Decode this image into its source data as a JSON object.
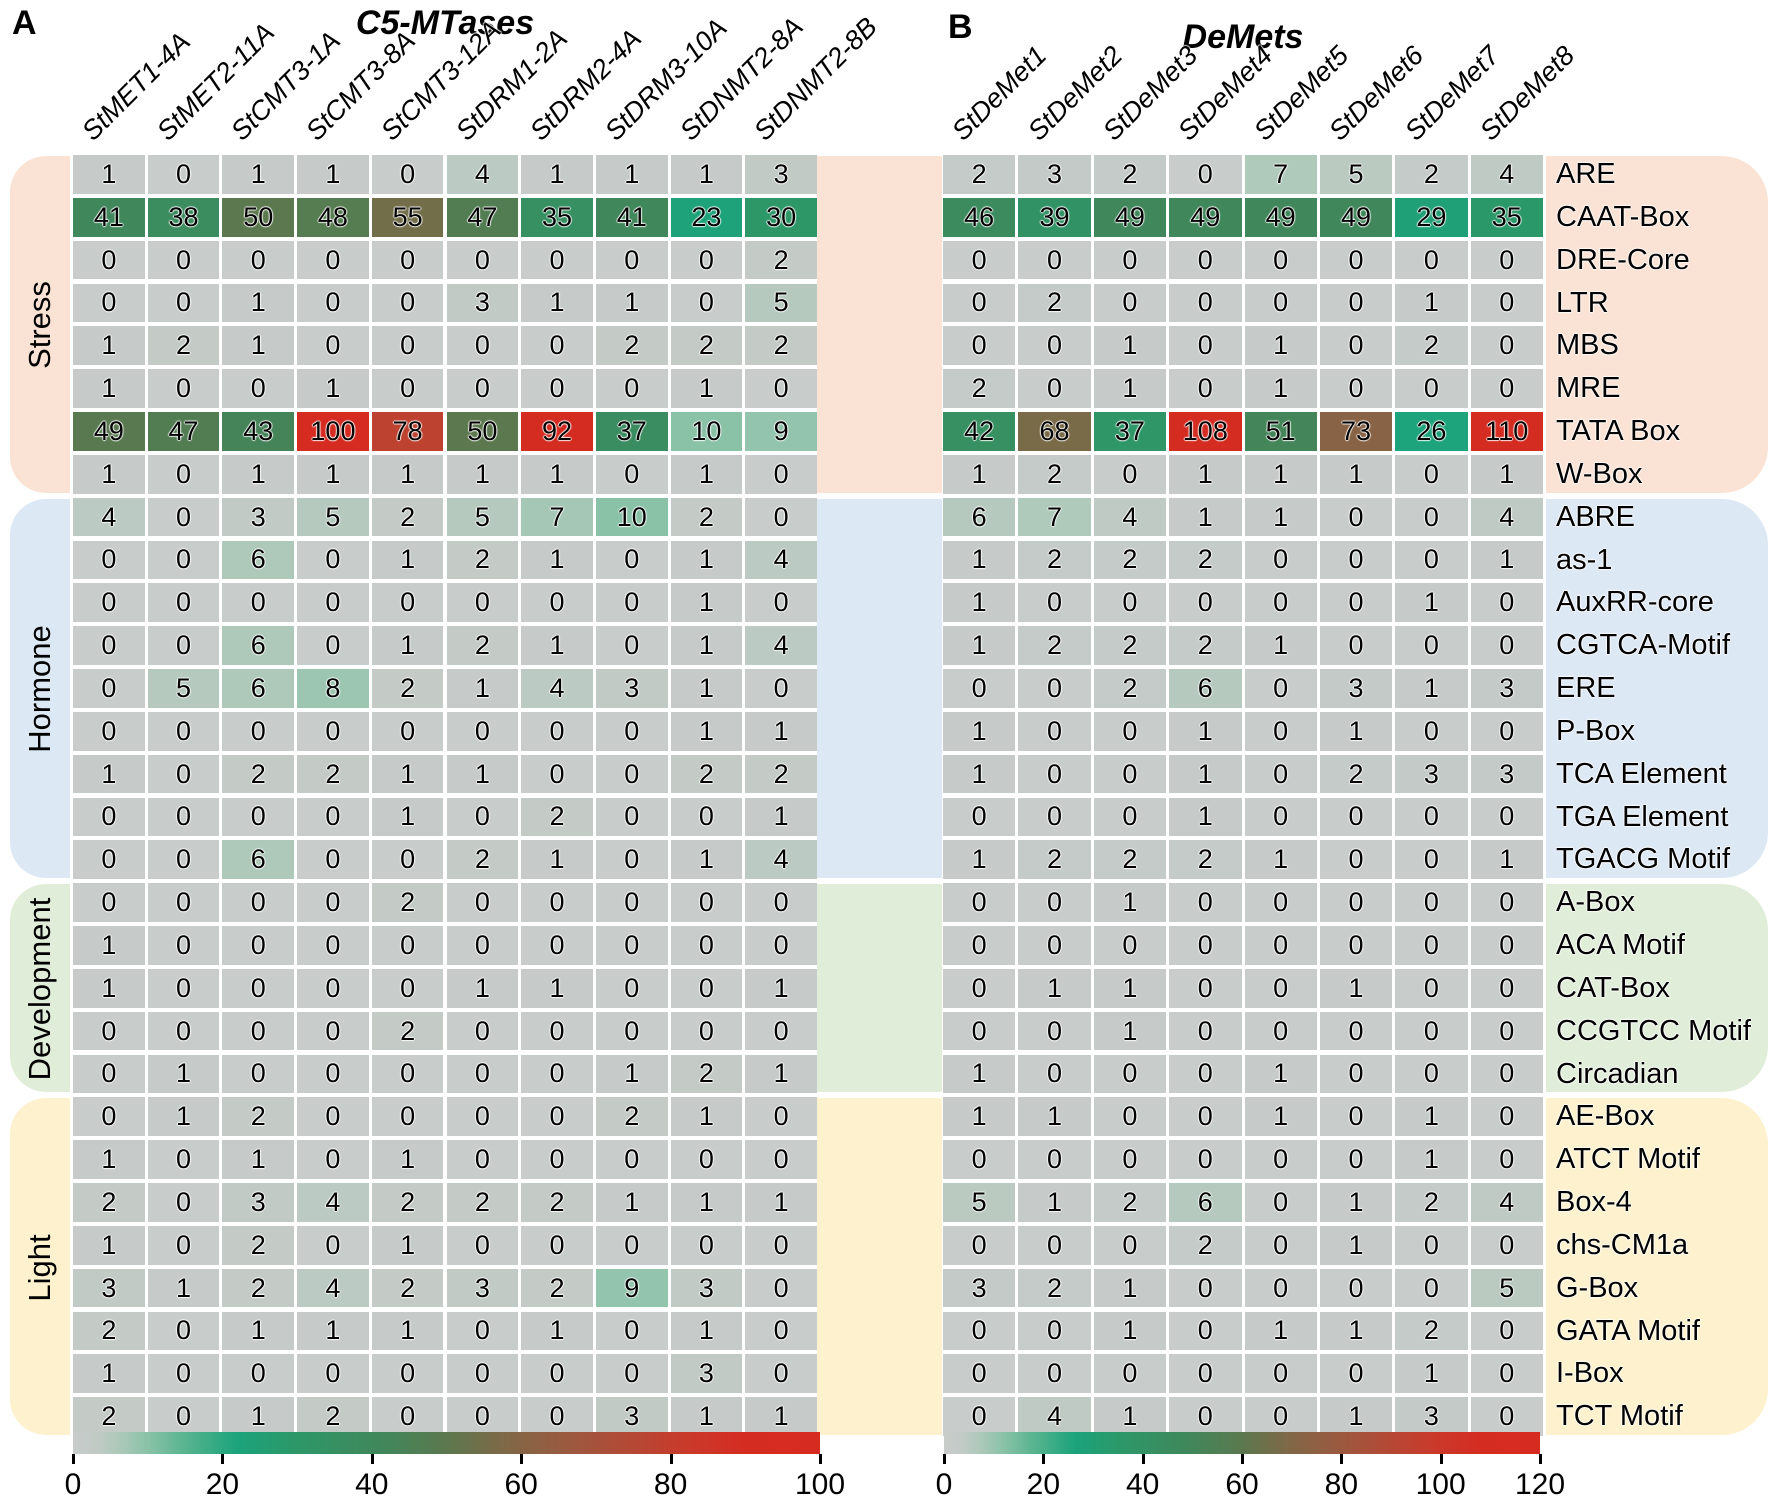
{
  "figure": {
    "panel_a_letter": "A",
    "panel_b_letter": "B"
  },
  "row_groups": [
    {
      "label": "Stress",
      "color": "#fae3d5",
      "rows": [
        "ARE",
        "CAAT-Box",
        "DRE-Core",
        "LTR",
        "MBS",
        "MRE",
        "TATA Box",
        "W-Box"
      ]
    },
    {
      "label": "Hormone",
      "color": "#dde8f5",
      "rows": [
        "ABRE",
        "as-1",
        "AuxRR-core",
        "CGTCA-Motif",
        "ERE",
        "P-Box",
        "TCA Element",
        "TGA Element",
        "TGACG Motif"
      ]
    },
    {
      "label": "Development",
      "color": "#e0eed9",
      "rows": [
        "A-Box",
        "ACA Motif",
        "CAT-Box",
        "CCGTCC Motif",
        "Circadian"
      ]
    },
    {
      "label": "Light",
      "color": "#fdf2cd",
      "rows": [
        "AE-Box",
        "ATCT Motif",
        "Box-4",
        "chs-CM1a",
        "G-Box",
        "GATA Motif",
        "I-Box",
        "TCT Motif"
      ]
    }
  ],
  "heatmap_scale": {
    "stops": [
      {
        "t": 0.0,
        "color": "#c8ccca"
      },
      {
        "t": 0.03,
        "color": "#c2cac6"
      },
      {
        "t": 0.06,
        "color": "#aec9ba"
      },
      {
        "t": 0.1,
        "color": "#8ac2a8"
      },
      {
        "t": 0.15,
        "color": "#58b48f"
      },
      {
        "t": 0.22,
        "color": "#1ba37b"
      },
      {
        "t": 0.3,
        "color": "#2d9768"
      },
      {
        "t": 0.42,
        "color": "#42865a"
      },
      {
        "t": 0.5,
        "color": "#5c784e"
      },
      {
        "t": 0.58,
        "color": "#806847"
      },
      {
        "t": 0.66,
        "color": "#9a5a40"
      },
      {
        "t": 0.74,
        "color": "#b24a36"
      },
      {
        "t": 0.82,
        "color": "#c93a2b"
      },
      {
        "t": 0.9,
        "color": "#d52c22"
      },
      {
        "t": 1.0,
        "color": "#d62b21"
      }
    ]
  },
  "chart_data": [
    {
      "type": "heatmap",
      "panel_label": "A",
      "title": "C5-MTases",
      "columns": [
        "StMET1-4A",
        "StMET2-11A",
        "StCMT3-1A",
        "StCMT3-8A",
        "StCMT3-12A",
        "StDRM1-2A",
        "StDRM2-4A",
        "StDRM3-10A",
        "StDNMT2-8A",
        "StDNMT2-8B"
      ],
      "rows": [
        "ARE",
        "CAAT-Box",
        "DRE-Core",
        "LTR",
        "MBS",
        "MRE",
        "TATA Box",
        "W-Box",
        "ABRE",
        "as-1",
        "AuxRR-core",
        "CGTCA-Motif",
        "ERE",
        "P-Box",
        "TCA Element",
        "TGA Element",
        "TGACG Motif",
        "A-Box",
        "ACA Motif",
        "CAT-Box",
        "CCGTCC Motif",
        "Circadian",
        "AE-Box",
        "ATCT Motif",
        "Box-4",
        "chs-CM1a",
        "G-Box",
        "GATA Motif",
        "I-Box",
        "TCT Motif"
      ],
      "values": [
        [
          1,
          0,
          1,
          1,
          0,
          4,
          1,
          1,
          1,
          3
        ],
        [
          41,
          38,
          50,
          48,
          55,
          47,
          35,
          41,
          23,
          30
        ],
        [
          0,
          0,
          0,
          0,
          0,
          0,
          0,
          0,
          0,
          2
        ],
        [
          0,
          0,
          1,
          0,
          0,
          3,
          1,
          1,
          0,
          5
        ],
        [
          1,
          2,
          1,
          0,
          0,
          0,
          0,
          2,
          2,
          2
        ],
        [
          1,
          0,
          0,
          1,
          0,
          0,
          0,
          0,
          1,
          0
        ],
        [
          49,
          47,
          43,
          100,
          78,
          50,
          92,
          37,
          10,
          9
        ],
        [
          1,
          0,
          1,
          1,
          1,
          1,
          1,
          0,
          1,
          0
        ],
        [
          4,
          0,
          3,
          5,
          2,
          5,
          7,
          10,
          2,
          0
        ],
        [
          0,
          0,
          6,
          0,
          1,
          2,
          1,
          0,
          1,
          4
        ],
        [
          0,
          0,
          0,
          0,
          0,
          0,
          0,
          0,
          1,
          0
        ],
        [
          0,
          0,
          6,
          0,
          1,
          2,
          1,
          0,
          1,
          4
        ],
        [
          0,
          5,
          6,
          8,
          2,
          1,
          4,
          3,
          1,
          0
        ],
        [
          0,
          0,
          0,
          0,
          0,
          0,
          0,
          0,
          1,
          1
        ],
        [
          1,
          0,
          2,
          2,
          1,
          1,
          0,
          0,
          2,
          2
        ],
        [
          0,
          0,
          0,
          0,
          1,
          0,
          2,
          0,
          0,
          1
        ],
        [
          0,
          0,
          6,
          0,
          0,
          2,
          1,
          0,
          1,
          4
        ],
        [
          0,
          0,
          0,
          0,
          2,
          0,
          0,
          0,
          0,
          0
        ],
        [
          1,
          0,
          0,
          0,
          0,
          0,
          0,
          0,
          0,
          0
        ],
        [
          1,
          0,
          0,
          0,
          0,
          1,
          1,
          0,
          0,
          1
        ],
        [
          0,
          0,
          0,
          0,
          2,
          0,
          0,
          0,
          0,
          0
        ],
        [
          0,
          1,
          0,
          0,
          0,
          0,
          0,
          1,
          2,
          1
        ],
        [
          0,
          1,
          2,
          0,
          0,
          0,
          0,
          2,
          1,
          0
        ],
        [
          1,
          0,
          1,
          0,
          1,
          0,
          0,
          0,
          0,
          0
        ],
        [
          2,
          0,
          3,
          4,
          2,
          2,
          2,
          1,
          1,
          1
        ],
        [
          1,
          0,
          2,
          0,
          1,
          0,
          0,
          0,
          0,
          0
        ],
        [
          3,
          1,
          2,
          4,
          2,
          3,
          2,
          9,
          3,
          0
        ],
        [
          2,
          0,
          1,
          1,
          1,
          0,
          1,
          0,
          1,
          0
        ],
        [
          1,
          0,
          0,
          0,
          0,
          0,
          0,
          0,
          3,
          0
        ],
        [
          2,
          0,
          1,
          2,
          0,
          0,
          0,
          3,
          1,
          1
        ]
      ],
      "scale_max": 100,
      "colorbar_ticks": [
        0,
        20,
        40,
        60,
        80,
        100
      ],
      "legend_position": "bottom",
      "grid": false
    },
    {
      "type": "heatmap",
      "panel_label": "B",
      "title": "DeMets",
      "columns": [
        "StDeMet1",
        "StDeMet2",
        "StDeMet3",
        "StDeMet4",
        "StDeMet5",
        "StDeMet6",
        "StDeMet7",
        "StDeMet8"
      ],
      "rows": [
        "ARE",
        "CAAT-Box",
        "DRE-Core",
        "LTR",
        "MBS",
        "MRE",
        "TATA Box",
        "W-Box",
        "ABRE",
        "as-1",
        "AuxRR-core",
        "CGTCA-Motif",
        "ERE",
        "P-Box",
        "TCA Element",
        "TGA Element",
        "TGACG Motif",
        "A-Box",
        "ACA Motif",
        "CAT-Box",
        "CCGTCC Motif",
        "Circadian",
        "AE-Box",
        "ATCT Motif",
        "Box-4",
        "chs-CM1a",
        "G-Box",
        "GATA Motif",
        "I-Box",
        "TCT Motif"
      ],
      "values": [
        [
          2,
          3,
          2,
          0,
          7,
          5,
          2,
          4
        ],
        [
          46,
          39,
          49,
          49,
          49,
          49,
          29,
          35
        ],
        [
          0,
          0,
          0,
          0,
          0,
          0,
          0,
          0
        ],
        [
          0,
          2,
          0,
          0,
          0,
          0,
          1,
          0
        ],
        [
          0,
          0,
          1,
          0,
          1,
          0,
          2,
          0
        ],
        [
          2,
          0,
          1,
          0,
          1,
          0,
          0,
          0
        ],
        [
          42,
          68,
          37,
          108,
          51,
          73,
          26,
          110
        ],
        [
          1,
          2,
          0,
          1,
          1,
          1,
          0,
          1
        ],
        [
          6,
          7,
          4,
          1,
          1,
          0,
          0,
          4
        ],
        [
          1,
          2,
          2,
          2,
          0,
          0,
          0,
          1
        ],
        [
          1,
          0,
          0,
          0,
          0,
          0,
          1,
          0
        ],
        [
          1,
          2,
          2,
          2,
          1,
          0,
          0,
          0
        ],
        [
          0,
          0,
          2,
          6,
          0,
          3,
          1,
          3
        ],
        [
          1,
          0,
          0,
          1,
          0,
          1,
          0,
          0
        ],
        [
          1,
          0,
          0,
          1,
          0,
          2,
          3,
          3
        ],
        [
          0,
          0,
          0,
          1,
          0,
          0,
          0,
          0
        ],
        [
          1,
          2,
          2,
          2,
          1,
          0,
          0,
          1
        ],
        [
          0,
          0,
          1,
          0,
          0,
          0,
          0,
          0
        ],
        [
          0,
          0,
          0,
          0,
          0,
          0,
          0,
          0
        ],
        [
          0,
          1,
          1,
          0,
          0,
          1,
          0,
          0
        ],
        [
          0,
          0,
          1,
          0,
          0,
          0,
          0,
          0
        ],
        [
          1,
          0,
          0,
          0,
          1,
          0,
          0,
          0
        ],
        [
          1,
          1,
          0,
          0,
          1,
          0,
          1,
          0
        ],
        [
          0,
          0,
          0,
          0,
          0,
          0,
          1,
          0
        ],
        [
          5,
          1,
          2,
          6,
          0,
          1,
          2,
          4
        ],
        [
          0,
          0,
          0,
          2,
          0,
          1,
          0,
          0
        ],
        [
          3,
          2,
          1,
          0,
          0,
          0,
          0,
          5
        ],
        [
          0,
          0,
          1,
          0,
          1,
          1,
          2,
          0
        ],
        [
          0,
          0,
          0,
          0,
          0,
          0,
          1,
          0
        ],
        [
          0,
          4,
          1,
          0,
          0,
          1,
          3,
          0
        ]
      ],
      "scale_max": 120,
      "colorbar_ticks": [
        0,
        20,
        40,
        60,
        80,
        100,
        120
      ],
      "legend_position": "bottom",
      "grid": false
    }
  ]
}
